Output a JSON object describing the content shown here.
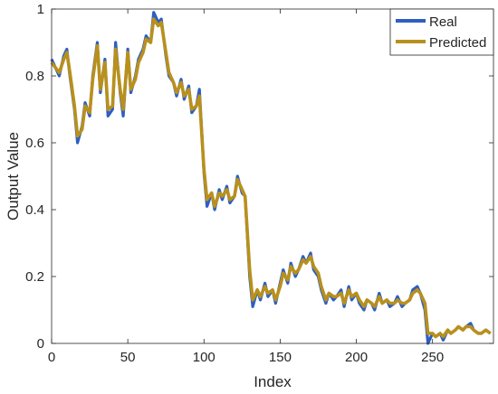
{
  "chart_data": {
    "type": "line",
    "title": "",
    "xlabel": "Index",
    "ylabel": "Output Value",
    "xlim": [
      0,
      290
    ],
    "ylim": [
      0,
      1
    ],
    "x_ticks": [
      0,
      50,
      100,
      150,
      200,
      250
    ],
    "y_ticks": [
      0,
      0.2,
      0.4,
      0.6,
      0.8,
      1
    ],
    "x_tick_labels": [
      "0",
      "50",
      "100",
      "150",
      "200",
      "250"
    ],
    "y_tick_labels": [
      "0",
      "0.2",
      "0.4",
      "0.6",
      "0.8",
      "1"
    ],
    "legend_position": "top-right",
    "grid": false,
    "x": [
      0,
      5,
      8,
      10,
      12,
      15,
      17,
      20,
      22,
      25,
      27,
      30,
      32,
      35,
      37,
      40,
      42,
      45,
      47,
      50,
      52,
      55,
      57,
      60,
      62,
      65,
      67,
      70,
      72,
      75,
      77,
      80,
      82,
      85,
      87,
      90,
      92,
      95,
      97,
      100,
      102,
      105,
      107,
      110,
      112,
      115,
      117,
      120,
      122,
      125,
      127,
      130,
      132,
      135,
      137,
      140,
      142,
      145,
      147,
      150,
      152,
      155,
      157,
      160,
      162,
      165,
      167,
      170,
      172,
      175,
      177,
      180,
      182,
      185,
      187,
      190,
      192,
      195,
      197,
      200,
      202,
      205,
      207,
      210,
      212,
      215,
      217,
      220,
      222,
      225,
      227,
      230,
      232,
      235,
      237,
      240,
      242,
      245,
      247,
      250,
      252,
      255,
      257,
      260,
      262,
      265,
      267,
      270,
      272,
      275,
      277,
      280,
      282,
      285,
      288
    ],
    "series": [
      {
        "name": "Real",
        "color": "#2d5fc2",
        "values": [
          0.85,
          0.8,
          0.86,
          0.88,
          0.8,
          0.7,
          0.6,
          0.65,
          0.72,
          0.68,
          0.8,
          0.9,
          0.75,
          0.85,
          0.68,
          0.7,
          0.9,
          0.75,
          0.68,
          0.88,
          0.75,
          0.8,
          0.85,
          0.88,
          0.92,
          0.9,
          0.99,
          0.96,
          0.97,
          0.86,
          0.8,
          0.78,
          0.74,
          0.79,
          0.73,
          0.77,
          0.69,
          0.71,
          0.76,
          0.51,
          0.41,
          0.45,
          0.4,
          0.46,
          0.43,
          0.47,
          0.42,
          0.44,
          0.5,
          0.45,
          0.44,
          0.2,
          0.11,
          0.16,
          0.13,
          0.18,
          0.14,
          0.16,
          0.12,
          0.18,
          0.22,
          0.18,
          0.24,
          0.2,
          0.22,
          0.26,
          0.24,
          0.27,
          0.22,
          0.2,
          0.16,
          0.12,
          0.15,
          0.13,
          0.14,
          0.16,
          0.11,
          0.17,
          0.13,
          0.15,
          0.12,
          0.1,
          0.13,
          0.12,
          0.1,
          0.15,
          0.12,
          0.13,
          0.11,
          0.12,
          0.14,
          0.11,
          0.12,
          0.13,
          0.16,
          0.17,
          0.15,
          0.1,
          0.0,
          0.03,
          0.02,
          0.03,
          0.01,
          0.04,
          0.03,
          0.04,
          0.05,
          0.04,
          0.05,
          0.06,
          0.04,
          0.03,
          0.03,
          0.04,
          0.03
        ]
      },
      {
        "name": "Predicted",
        "color": "#b8901c",
        "values": [
          0.84,
          0.81,
          0.85,
          0.87,
          0.81,
          0.71,
          0.62,
          0.64,
          0.71,
          0.69,
          0.79,
          0.89,
          0.76,
          0.84,
          0.7,
          0.71,
          0.88,
          0.76,
          0.7,
          0.87,
          0.76,
          0.79,
          0.84,
          0.87,
          0.91,
          0.9,
          0.97,
          0.95,
          0.96,
          0.87,
          0.81,
          0.78,
          0.75,
          0.78,
          0.74,
          0.76,
          0.7,
          0.71,
          0.74,
          0.52,
          0.43,
          0.45,
          0.41,
          0.45,
          0.44,
          0.46,
          0.43,
          0.44,
          0.49,
          0.46,
          0.44,
          0.22,
          0.13,
          0.16,
          0.14,
          0.17,
          0.15,
          0.16,
          0.13,
          0.17,
          0.21,
          0.19,
          0.23,
          0.21,
          0.22,
          0.25,
          0.24,
          0.26,
          0.23,
          0.21,
          0.17,
          0.13,
          0.15,
          0.14,
          0.14,
          0.15,
          0.12,
          0.16,
          0.14,
          0.15,
          0.13,
          0.11,
          0.13,
          0.12,
          0.11,
          0.14,
          0.12,
          0.13,
          0.12,
          0.12,
          0.13,
          0.12,
          0.12,
          0.13,
          0.15,
          0.16,
          0.15,
          0.12,
          0.03,
          0.03,
          0.02,
          0.03,
          0.02,
          0.04,
          0.03,
          0.04,
          0.05,
          0.04,
          0.05,
          0.05,
          0.04,
          0.03,
          0.03,
          0.04,
          0.03
        ]
      }
    ]
  }
}
